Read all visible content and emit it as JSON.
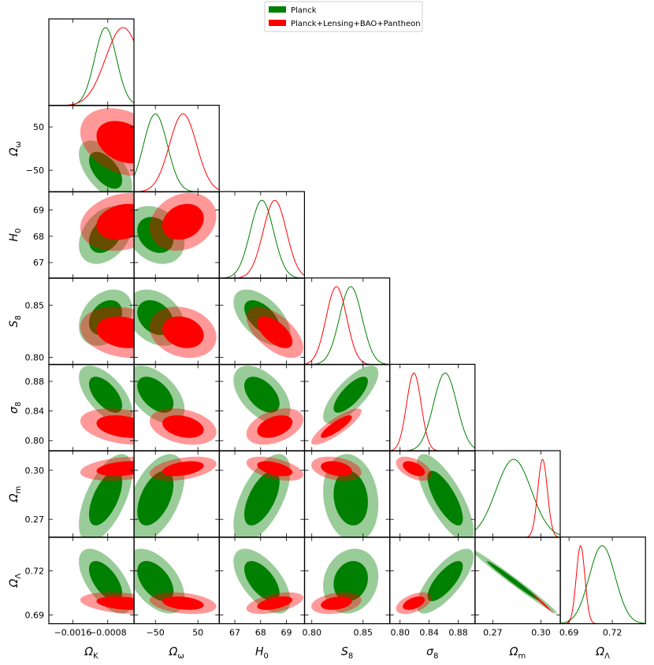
{
  "chart_data": {
    "type": "triangle-corner",
    "params": [
      {
        "key": "omega_k",
        "label": "Ω",
        "sub": "K",
        "ticks": [
          -0.0016,
          -0.0008
        ],
        "tick_labels": [
          "−0.0016",
          "−0.0008"
        ],
        "range": [
          -0.00215,
          -0.0002
        ]
      },
      {
        "key": "omega_w",
        "label": "Ω",
        "sub": "ω",
        "ticks": [
          -50,
          50
        ],
        "tick_labels": [
          "−50",
          "50"
        ],
        "range": [
          -100,
          100
        ]
      },
      {
        "key": "h0",
        "label": "H",
        "sub": "0",
        "ticks": [
          67,
          68,
          69
        ],
        "tick_labels": [
          "67",
          "68",
          "69"
        ],
        "range": [
          66.4,
          69.7
        ]
      },
      {
        "key": "s8",
        "label": "S",
        "sub": "8",
        "ticks": [
          0.8,
          0.85
        ],
        "tick_labels": [
          "0.80",
          "0.85"
        ],
        "range": [
          0.793,
          0.876
        ]
      },
      {
        "key": "sigma8",
        "label": "σ",
        "sub": "8",
        "ticks": [
          0.8,
          0.84,
          0.88
        ],
        "tick_labels": [
          "0.80",
          "0.84",
          "0.88"
        ],
        "range": [
          0.786,
          0.903
        ]
      },
      {
        "key": "omega_m",
        "label": "Ω",
        "sub": "m",
        "ticks": [
          0.27,
          0.3
        ],
        "tick_labels": [
          "0.27",
          "0.30"
        ],
        "range": [
          0.259,
          0.312
        ]
      },
      {
        "key": "omega_l",
        "label": "Ω",
        "sub": "Λ",
        "ticks": [
          0.69,
          0.72
        ],
        "tick_labels": [
          "0.69",
          "0.72"
        ],
        "range": [
          0.684,
          0.743
        ]
      }
    ],
    "series": [
      {
        "name": "Planck",
        "color": "#008000",
        "mean": [
          -0.00085,
          -50,
          68.05,
          0.838,
          0.862,
          0.283,
          0.713
        ],
        "sigma": [
          0.00025,
          28,
          0.45,
          0.011,
          0.016,
          0.011,
          0.009
        ],
        "peak_scale": [
          1,
          1,
          1,
          1,
          1,
          1,
          1
        ],
        "corr": {
          "0,1": -0.55,
          "0,2": 0.35,
          "0,3": 0.3,
          "0,4": -0.6,
          "0,5": 0.6,
          "0,6": -0.6,
          "1,2": -0.25,
          "1,3": -0.3,
          "1,4": -0.5,
          "1,5": 0.5,
          "1,6": -0.5,
          "2,3": -0.55,
          "2,4": -0.5,
          "2,5": 0.6,
          "2,6": -0.6,
          "3,4": 0.75,
          "3,5": -0.15,
          "3,6": 0.15,
          "4,5": -0.75,
          "4,6": 0.75,
          "5,6": -0.99
        }
      },
      {
        "name": "Planck+Lensing+BAO+Pantheon",
        "color": "#ff0000",
        "mean": [
          -0.00045,
          15,
          68.55,
          0.824,
          0.819,
          0.301,
          0.698
        ],
        "sigma": [
          0.0004,
          32,
          0.45,
          0.01,
          0.01,
          0.003,
          0.003
        ],
        "peak_scale": [
          1,
          1,
          1,
          1,
          1,
          1,
          1
        ],
        "corr": {
          "0,1": -0.3,
          "0,2": 0.2,
          "0,3": -0.2,
          "0,4": -0.3,
          "0,5": 0.3,
          "0,6": -0.3,
          "1,2": 0.2,
          "1,3": -0.2,
          "1,4": -0.3,
          "1,5": 0.4,
          "1,6": -0.3,
          "2,3": -0.6,
          "2,4": 0.4,
          "2,5": -0.5,
          "2,6": 0.5,
          "3,4": 0.85,
          "3,5": -0.3,
          "3,6": 0.3,
          "4,5": -0.5,
          "4,6": 0.5,
          "5,6": -0.99
        }
      }
    ],
    "legend": {
      "entries": [
        "Planck",
        "Planck+Lensing+BAO+Pantheon"
      ],
      "placement": "top-center"
    }
  }
}
